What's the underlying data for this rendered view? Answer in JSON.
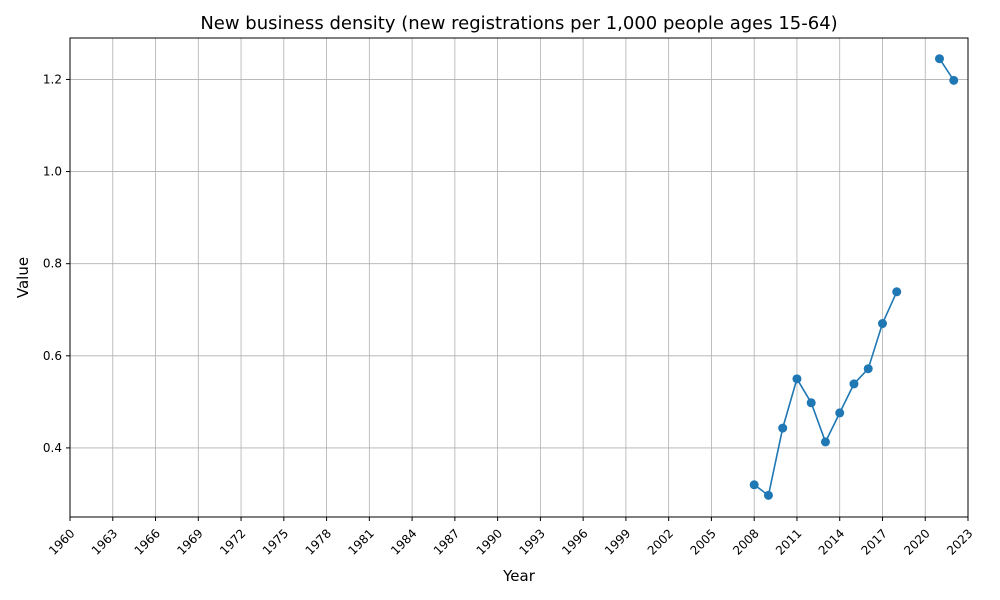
{
  "chart_data": {
    "type": "line",
    "title": "New business density (new registrations per 1,000 people ages 15-64)",
    "xlabel": "Year",
    "ylabel": "Value",
    "xlim": [
      1960,
      2023
    ],
    "ylim": [
      0.25,
      1.29
    ],
    "xticks": [
      1960,
      1963,
      1966,
      1969,
      1972,
      1975,
      1978,
      1981,
      1984,
      1987,
      1990,
      1993,
      1996,
      1999,
      2002,
      2005,
      2008,
      2011,
      2014,
      2017,
      2020,
      2023
    ],
    "yticks": [
      0.4,
      0.6,
      0.8,
      1.0,
      1.2
    ],
    "ytick_labels": [
      "0.4",
      "0.6",
      "0.8",
      "1.0",
      "1.2"
    ],
    "grid": true,
    "x_tick_rotation_deg": 45,
    "series": [
      {
        "color": "#1f77b4",
        "marker": "circle",
        "points": [
          {
            "x": 2008,
            "y": 0.32
          },
          {
            "x": 2009,
            "y": 0.297
          },
          {
            "x": 2010,
            "y": 0.443
          },
          {
            "x": 2011,
            "y": 0.55
          },
          {
            "x": 2012,
            "y": 0.498
          },
          {
            "x": 2013,
            "y": 0.413
          },
          {
            "x": 2014,
            "y": 0.476
          },
          {
            "x": 2015,
            "y": 0.539
          },
          {
            "x": 2016,
            "y": 0.572
          },
          {
            "x": 2017,
            "y": 0.67
          },
          {
            "x": 2018,
            "y": 0.739
          },
          {
            "x": 2021,
            "y": 1.245
          },
          {
            "x": 2022,
            "y": 1.198
          }
        ],
        "segments": [
          [
            2008,
            2018
          ],
          [
            2021,
            2022
          ]
        ]
      }
    ]
  }
}
